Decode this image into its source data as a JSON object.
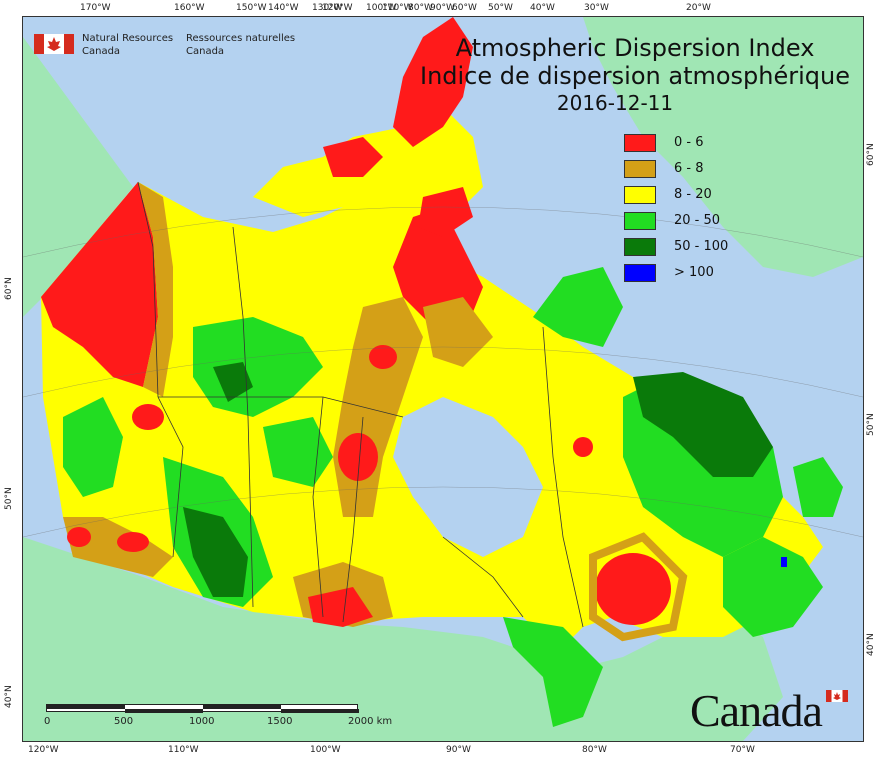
{
  "titles": {
    "title_en": "Atmospheric Dispersion Index",
    "title_fr": "Indice de dispersion atmosphérique",
    "date": "2016-12-11"
  },
  "agency": {
    "name_en_line1": "Natural Resources",
    "name_en_line2": "Canada",
    "name_fr_line1": "Ressources naturelles",
    "name_fr_line2": "Canada"
  },
  "legend": [
    {
      "label": "0 - 6",
      "color": "#ff1a1a"
    },
    {
      "label": "6 - 8",
      "color": "#d4a017"
    },
    {
      "label": "8 - 20",
      "color": "#ffff00"
    },
    {
      "label": "20 - 50",
      "color": "#22dd22"
    },
    {
      "label": "50 - 100",
      "color": "#0a7a0a"
    },
    {
      "label": "> 100",
      "color": "#0000ff"
    }
  ],
  "graticule": {
    "top_labels": [
      "170°W",
      "160°W",
      "150°W",
      "140°W",
      "130°W",
      "120°W",
      "110°W",
      "100°W",
      "90°W",
      "80°W",
      "70°W",
      "60°W",
      "50°W",
      "40°W",
      "30°W",
      "20°W"
    ],
    "bottom_labels": [
      "120°W",
      "110°W",
      "100°W",
      "90°W",
      "80°W",
      "70°W"
    ],
    "left_labels": [
      "60°N",
      "50°N",
      "40°N"
    ],
    "right_labels": [
      "60°N",
      "50°N",
      "40°N"
    ]
  },
  "scale_bar": {
    "labels": [
      "0",
      "500",
      "1000",
      "1500",
      "2000 km"
    ]
  },
  "wordmark": "Canada",
  "colors": {
    "ocean": "#b4d2f0",
    "other_land": "#a0e6b4",
    "boundary": "#333333"
  }
}
